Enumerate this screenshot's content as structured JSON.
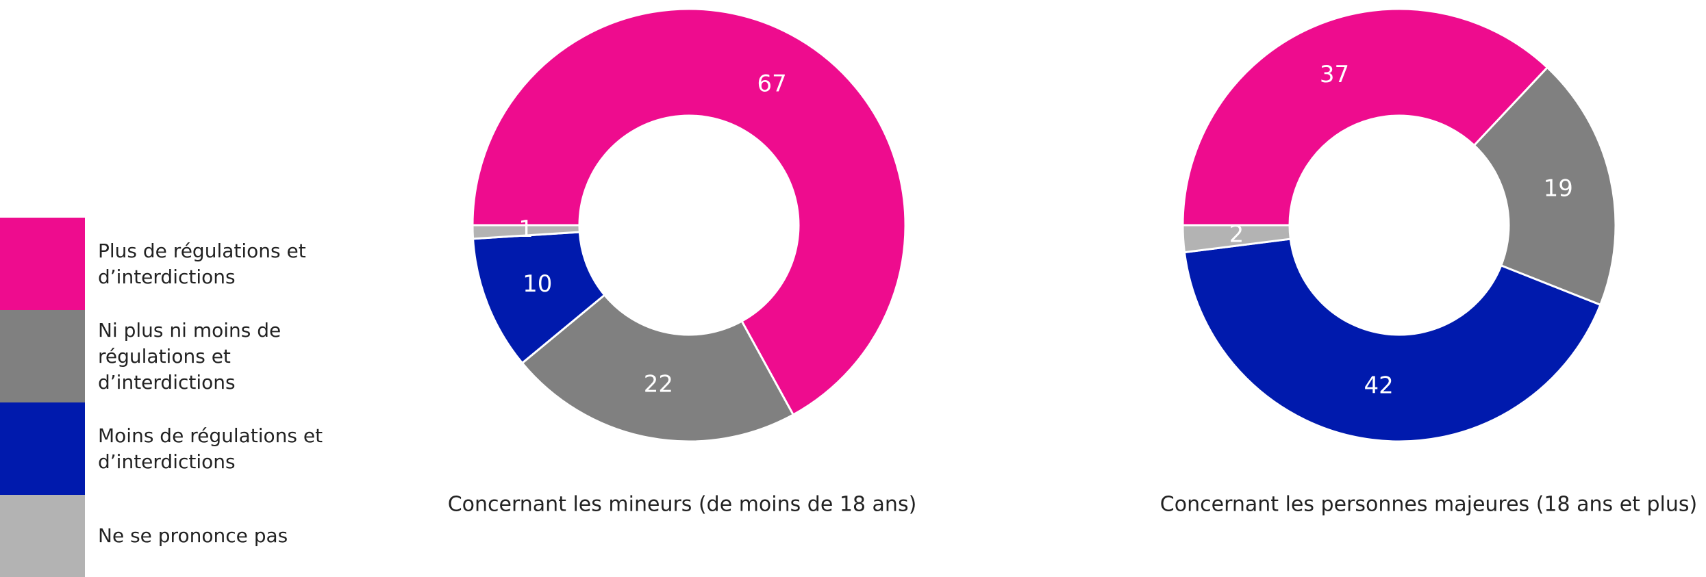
{
  "legend": {
    "labels": [
      "Plus de régulations et d’interdictions",
      "Ni plus ni moins de régulations et d’interdictions",
      "Moins de régulations et d’interdictions",
      "Ne se prononce pas"
    ],
    "colors": [
      "#ee0c8e",
      "#808080",
      "#001aad",
      "#b3b3b3"
    ]
  },
  "chart_data": [
    {
      "type": "donut",
      "title": "Concernant les mineurs (de moins de 18 ans)",
      "values": [
        67,
        22,
        10,
        1
      ]
    },
    {
      "type": "donut",
      "title": "Concernant les personnes majeures (18 ans et plus)",
      "values": [
        37,
        19,
        42,
        2
      ]
    }
  ]
}
